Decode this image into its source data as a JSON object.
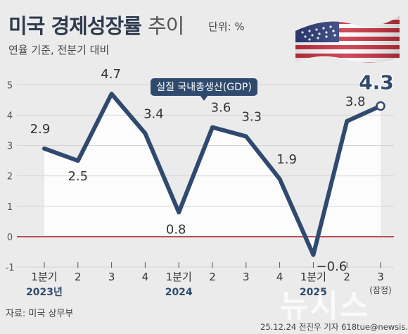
{
  "header": {
    "title_bold": "미국 경제성장률",
    "title_light": "추이",
    "unit": "단위: %",
    "subtitle": "연율 기준, 전분기 대비"
  },
  "footer": {
    "source": "자료: 미국 상무부",
    "credit": "25.12.24 전진우 기자 618tue@newsis.com",
    "watermark": "뉴시스"
  },
  "colors": {
    "line": "#2f4a6e",
    "zero_line": "#a33030",
    "area": "#ffffff",
    "badge": "#2f4a6e"
  },
  "chart_data": {
    "type": "line",
    "series": [
      {
        "name": "실질 국내총생산(GDP)",
        "values": [
          2.9,
          2.5,
          4.7,
          3.4,
          0.8,
          3.6,
          3.3,
          1.9,
          -0.6,
          3.8,
          4.3
        ]
      }
    ],
    "categories": [
      "1분기",
      "2",
      "3",
      "4",
      "1분기",
      "2",
      "3",
      "4",
      "1분기",
      "2",
      "3"
    ],
    "year_labels": [
      {
        "index": 0,
        "label": "2023년"
      },
      {
        "index": 4,
        "label": "2024"
      },
      {
        "index": 8,
        "label": "2025"
      }
    ],
    "last_note": "(잠정)",
    "y_ticks": [
      -1,
      0,
      1,
      2,
      3,
      4,
      5
    ],
    "ylim": [
      -1,
      5.4
    ],
    "highlight_index": 10
  }
}
